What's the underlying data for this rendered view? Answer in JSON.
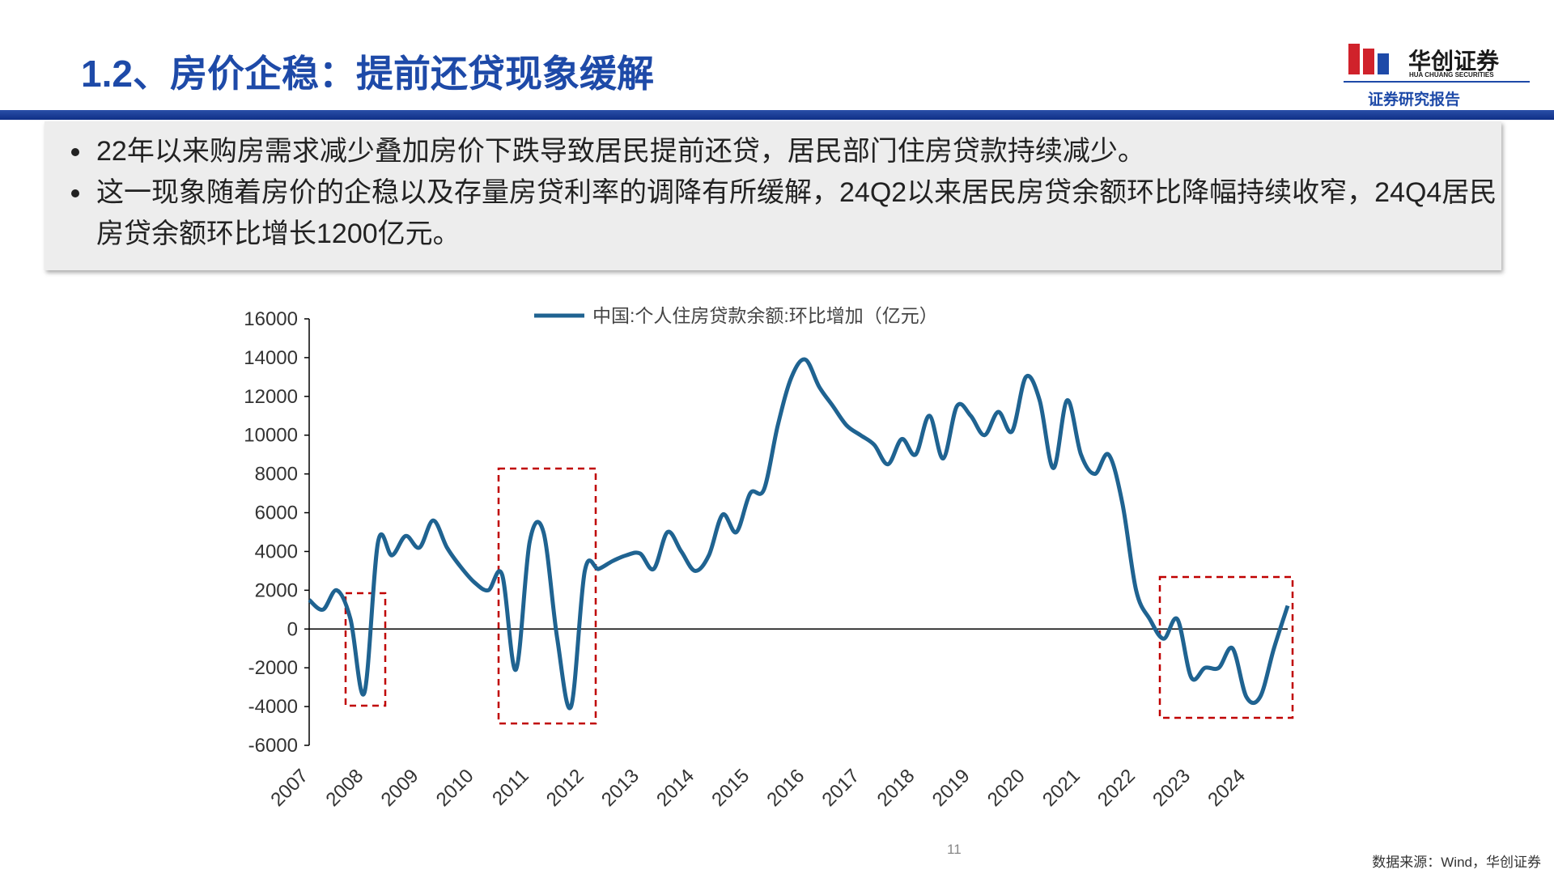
{
  "header": {
    "title": "1.2、房价企稳：提前还贷现象缓解",
    "logo_name": "华创证券",
    "logo_en": "HUA CHUANG SECURITIES",
    "report_type": "证券研究报告"
  },
  "bullets": [
    "22年以来购房需求减少叠加房价下跌导致居民提前还贷，居民部门住房贷款持续减少。",
    "这一现象随着房价的企稳以及存量房贷利率的调降有所缓解，24Q2以来居民房贷余额环比降幅持续收窄，24Q4居民房贷余额环比增长1200亿元。"
  ],
  "chart_data": {
    "type": "line",
    "categories": [
      "2007",
      null,
      null,
      null,
      "2008",
      null,
      null,
      null,
      "2009",
      null,
      null,
      null,
      "2010",
      null,
      null,
      null,
      "2011",
      null,
      null,
      null,
      "2012",
      null,
      null,
      null,
      "2013",
      null,
      null,
      null,
      "2014",
      null,
      null,
      null,
      "2015",
      null,
      null,
      null,
      "2016",
      null,
      null,
      null,
      "2017",
      null,
      null,
      null,
      "2018",
      null,
      null,
      null,
      "2019",
      null,
      null,
      null,
      "2020",
      null,
      null,
      null,
      "2021",
      null,
      null,
      null,
      "2022",
      null,
      null,
      null,
      "2023",
      null,
      null,
      null,
      "2024",
      null,
      null,
      null
    ],
    "series": [
      {
        "name": "中国:个人住房贷款余额:环比增加（亿元）",
        "color": "#1f6391",
        "values": [
          1500,
          1000,
          2000,
          500,
          -3300,
          4500,
          3800,
          4800,
          4200,
          5600,
          4200,
          3200,
          2400,
          2000,
          2800,
          -2100,
          4500,
          5000,
          -500,
          -4000,
          3000,
          3100,
          3500,
          3800,
          3900,
          3100,
          5000,
          4000,
          3000,
          3800,
          5900,
          5000,
          7000,
          7200,
          10500,
          13000,
          13900,
          12500,
          11500,
          10500,
          10000,
          9500,
          8500,
          9800,
          9000,
          11000,
          8800,
          11500,
          11000,
          10000,
          11200,
          10200,
          13000,
          11800,
          8300,
          11800,
          9000,
          8000,
          9000,
          6500,
          2000,
          500,
          -500,
          500,
          -2500,
          -2000,
          -2000,
          -1000,
          -3500,
          -3500,
          -1000,
          1200
        ]
      }
    ],
    "ylim": [
      -6000,
      16000
    ],
    "yticks": [
      -6000,
      -4000,
      -2000,
      0,
      2000,
      4000,
      6000,
      8000,
      10000,
      12000,
      14000,
      16000
    ]
  },
  "page_number": "11",
  "source": "数据来源：Wind，华创证券"
}
